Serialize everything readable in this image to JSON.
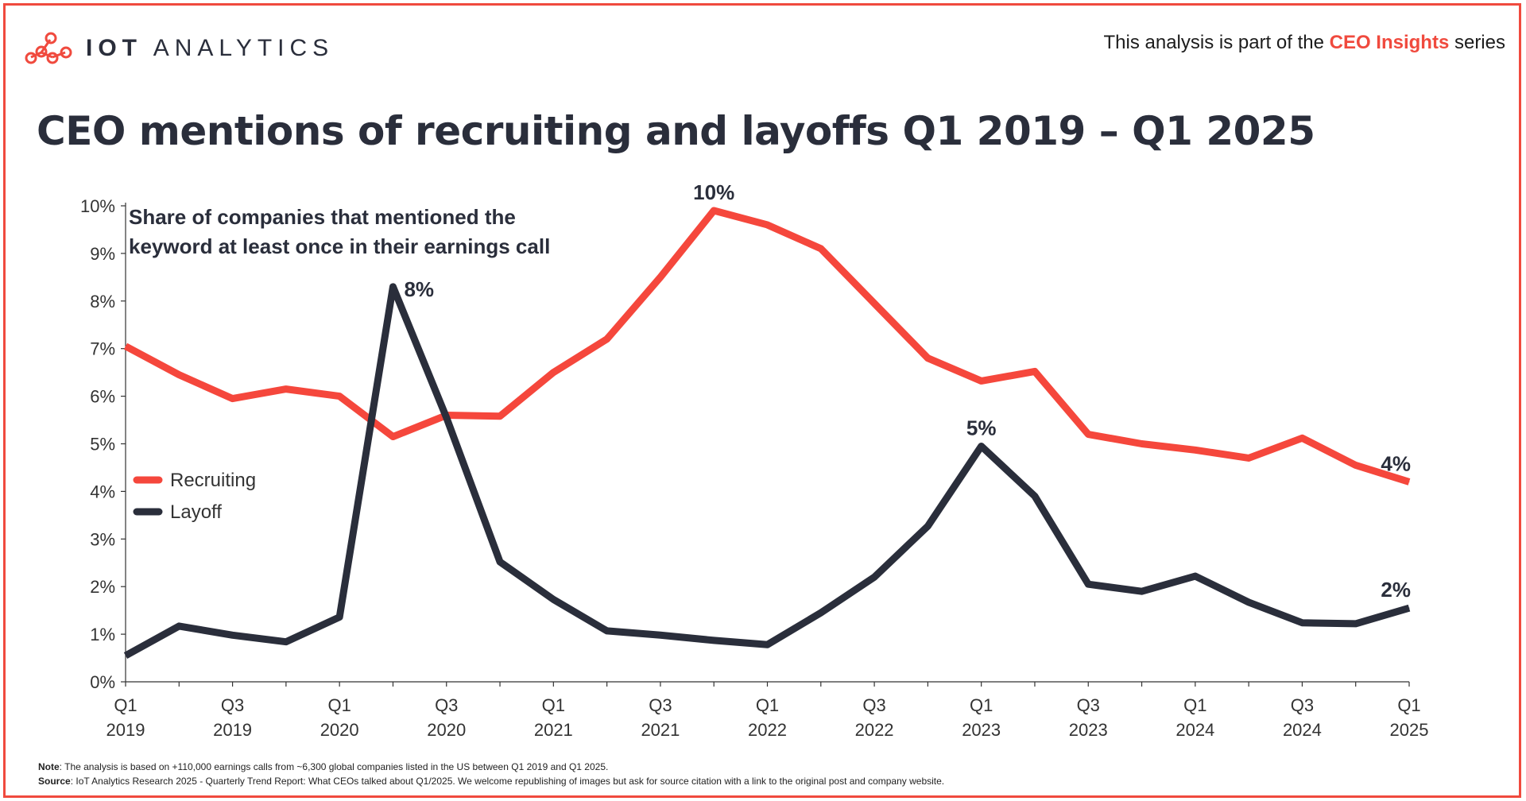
{
  "header": {
    "logo_text_bold": "IOT",
    "logo_text_light": "ANALYTICS",
    "series_prefix": "This analysis is part of the",
    "series_name": "CEO Insights",
    "series_suffix": "series"
  },
  "title": "CEO mentions of recruiting and layoffs Q1 2019 – Q1 2025",
  "colors": {
    "accent": "#f04a3e",
    "recruiting": "#f5473c",
    "layoff": "#2a2e3b"
  },
  "chart_data": {
    "type": "line",
    "annotation_title": [
      "Share of companies that mentioned the",
      "keyword at least once in their earnings call"
    ],
    "ylim": [
      0,
      10
    ],
    "y_ticks": [
      "0%",
      "1%",
      "2%",
      "3%",
      "4%",
      "5%",
      "6%",
      "7%",
      "8%",
      "9%",
      "10%"
    ],
    "categories": [
      "Q1 2019",
      "Q2 2019",
      "Q3 2019",
      "Q4 2019",
      "Q1 2020",
      "Q2 2020",
      "Q3 2020",
      "Q4 2020",
      "Q1 2021",
      "Q2 2021",
      "Q3 2021",
      "Q4 2021",
      "Q1 2022",
      "Q2 2022",
      "Q3 2022",
      "Q4 2022",
      "Q1 2023",
      "Q2 2023",
      "Q3 2023",
      "Q4 2023",
      "Q1 2024",
      "Q2 2024",
      "Q3 2024",
      "Q4 2024",
      "Q1 2025"
    ],
    "x_tick_labels": [
      {
        "index": 0,
        "q": "Q1",
        "year": "2019"
      },
      {
        "index": 2,
        "q": "Q3",
        "year": "2019"
      },
      {
        "index": 4,
        "q": "Q1",
        "year": "2020"
      },
      {
        "index": 6,
        "q": "Q3",
        "year": "2020"
      },
      {
        "index": 8,
        "q": "Q1",
        "year": "2021"
      },
      {
        "index": 10,
        "q": "Q3",
        "year": "2021"
      },
      {
        "index": 12,
        "q": "Q1",
        "year": "2022"
      },
      {
        "index": 14,
        "q": "Q3",
        "year": "2022"
      },
      {
        "index": 16,
        "q": "Q1",
        "year": "2023"
      },
      {
        "index": 18,
        "q": "Q3",
        "year": "2023"
      },
      {
        "index": 20,
        "q": "Q1",
        "year": "2024"
      },
      {
        "index": 22,
        "q": "Q3",
        "year": "2024"
      },
      {
        "index": 24,
        "q": "Q1",
        "year": "2025"
      }
    ],
    "series": [
      {
        "name": "Recruiting",
        "color": "#f5473c",
        "values": [
          7.05,
          6.45,
          5.95,
          6.15,
          6.0,
          5.15,
          5.6,
          5.58,
          6.5,
          7.2,
          8.5,
          9.9,
          9.6,
          9.1,
          7.95,
          6.8,
          6.32,
          6.52,
          5.2,
          5.0,
          4.87,
          4.7,
          5.12,
          4.55,
          4.2
        ]
      },
      {
        "name": "Layoff",
        "color": "#2a2e3b",
        "values": [
          0.55,
          1.17,
          0.98,
          0.84,
          1.36,
          8.3,
          5.55,
          2.52,
          1.73,
          1.07,
          0.98,
          0.87,
          0.78,
          1.45,
          2.2,
          3.27,
          4.95,
          3.9,
          2.05,
          1.9,
          2.22,
          1.67,
          1.24,
          1.22,
          1.55
        ]
      }
    ],
    "data_labels": [
      {
        "series": "Recruiting",
        "index": 11,
        "text": "10%",
        "pos": "above"
      },
      {
        "series": "Recruiting",
        "index": 24,
        "text": "4%",
        "pos": "above"
      },
      {
        "series": "Layoff",
        "index": 5,
        "text": "8%",
        "pos": "right"
      },
      {
        "series": "Layoff",
        "index": 16,
        "text": "5%",
        "pos": "above"
      },
      {
        "series": "Layoff",
        "index": 24,
        "text": "2%",
        "pos": "above"
      }
    ],
    "legend": [
      {
        "label": "Recruiting",
        "color": "#f5473c"
      },
      {
        "label": "Layoff",
        "color": "#2a2e3b"
      }
    ],
    "legend_position": "middle-left"
  },
  "footnote": {
    "note_label": "Note",
    "note_text": ": The analysis is based on +110,000 earnings calls from ~6,300 global companies listed in the US between Q1 2019 and Q1 2025.",
    "source_label": "Source",
    "source_text": ": IoT Analytics Research 2025 - Quarterly Trend Report: What CEOs talked about Q1/2025. We welcome republishing of images but ask for source citation with a link to the original post and company website."
  }
}
